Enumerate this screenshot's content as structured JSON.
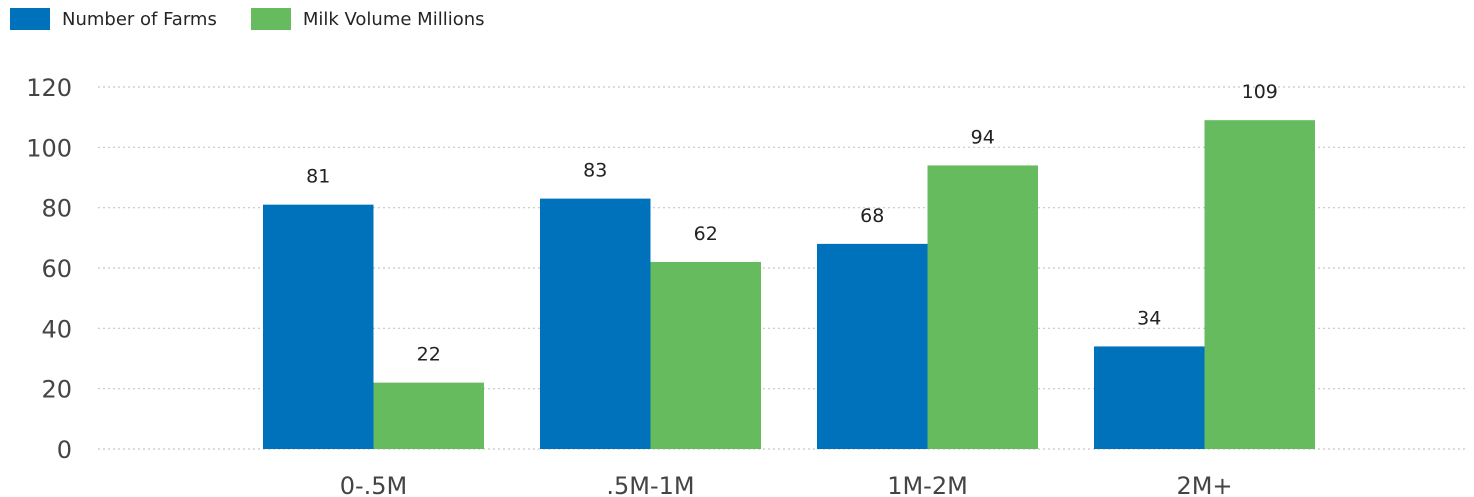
{
  "legend": {
    "items": [
      {
        "label": "Number of Farms",
        "color": "#0072BC"
      },
      {
        "label": "Milk Volume Millions",
        "color": "#66BB5E"
      }
    ]
  },
  "chart_data": {
    "type": "bar",
    "categories": [
      "0-.5M",
      ".5M-1M",
      "1M-2M",
      "2M+"
    ],
    "series": [
      {
        "name": "Number of Farms",
        "values": [
          81,
          83,
          68,
          34
        ],
        "color": "#0072BC"
      },
      {
        "name": "Milk Volume Millions",
        "values": [
          22,
          62,
          94,
          109
        ],
        "color": "#66BB5E"
      }
    ],
    "ylim": [
      0,
      120
    ],
    "yticks": [
      0,
      20,
      40,
      60,
      80,
      100,
      120
    ],
    "grid": true,
    "legend_position": "top-left",
    "data_labels": true
  }
}
